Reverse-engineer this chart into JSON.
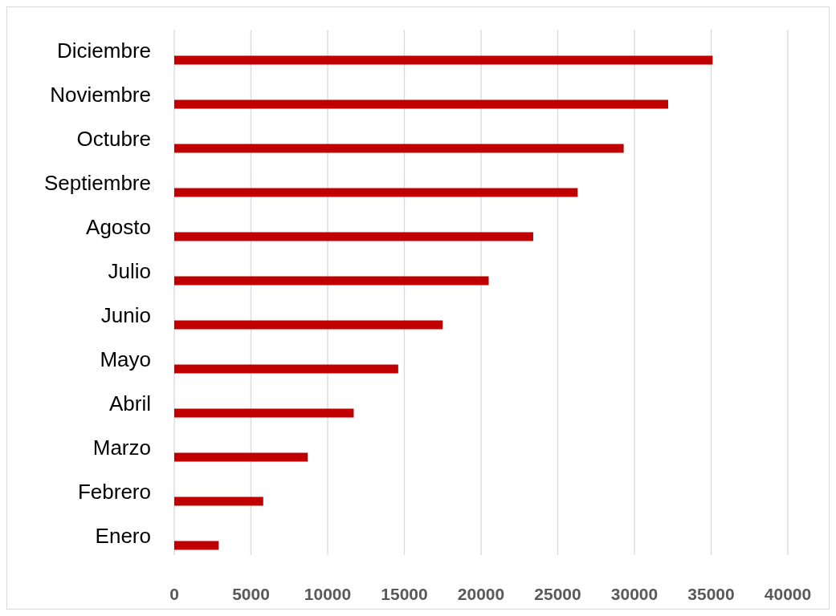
{
  "chart_data": {
    "type": "bar",
    "orientation": "horizontal",
    "categories": [
      "Diciembre",
      "Noviembre",
      "Octubre",
      "Septiembre",
      "Agosto",
      "Julio",
      "Junio",
      "Mayo",
      "Abril",
      "Marzo",
      "Febrero",
      "Enero"
    ],
    "values": [
      35100,
      32200,
      29300,
      26300,
      23400,
      20500,
      17500,
      14600,
      11700,
      8700,
      5800,
      2900
    ],
    "color": "#c00000",
    "xlim": [
      0,
      40000
    ],
    "xticks": [
      0,
      5000,
      10000,
      15000,
      20000,
      25000,
      30000,
      35000,
      40000
    ],
    "grid": "x"
  }
}
